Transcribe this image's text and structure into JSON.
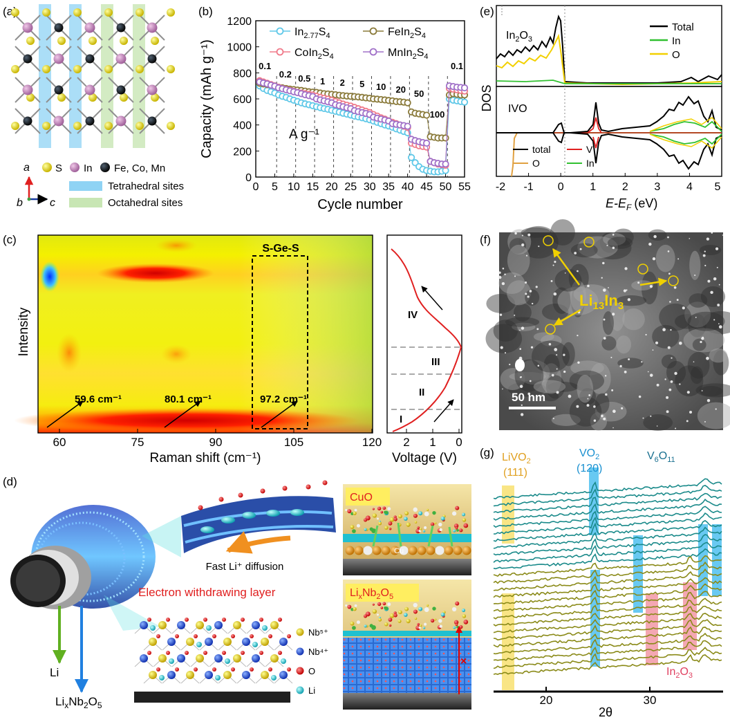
{
  "panels": {
    "a": {
      "letter": "(a)",
      "axes": {
        "a": "a",
        "b": "b",
        "c": "c"
      },
      "legend": {
        "s": "S",
        "in": "In",
        "metals": "Fe, Co, Mn",
        "tetra": "Tetrahedral sites",
        "octa": "Octahedral sites"
      }
    },
    "c": {
      "letter": "(c)",
      "box_label": "S-Ge-S",
      "ylabel": "Intensity",
      "xlabel": "Raman shift (cm⁻¹)",
      "xticks": [
        "60",
        "75",
        "90",
        "105",
        "120"
      ],
      "peaks": [
        "59.6 cm⁻¹",
        "80.1 cm⁻¹",
        "97.2 cm⁻¹"
      ],
      "voltage": {
        "xlabel": "Voltage (V)",
        "xticks": [
          "2",
          "1",
          "0"
        ],
        "stages": [
          "IV",
          "III",
          "II",
          "I"
        ]
      }
    },
    "d": {
      "letter": "(d)",
      "fast": "Fast Li⁺ diffusion",
      "ewl": "Electron withdrawing layer",
      "li": "Li",
      "lixnb": "LixNb2O5",
      "cuo": "CuO",
      "lixnb_box": "LixNb2O5",
      "cu": "Cu",
      "legend": [
        "Nb⁵⁺",
        "Nb⁴⁺",
        "O",
        "Li"
      ],
      "cross": "×"
    },
    "e": {
      "letter": "(e)",
      "ylabel": "DOS",
      "xlabel": "E-E",
      "xlabel_sub": "F",
      "xlabel_unit": "(eV)",
      "top_label": "In2O3",
      "bottom_label": "IVO",
      "xticks": [
        "-2",
        "-1",
        "0",
        "1",
        "2",
        "3",
        "4",
        "5"
      ],
      "top_legend": [
        "Total",
        "In",
        "O"
      ],
      "bottom_legend": [
        "total",
        "V",
        "O",
        "In"
      ]
    },
    "f": {
      "letter": "(f)",
      "label": "Li13In3",
      "scale": "50 nm"
    },
    "g": {
      "letter": "(g)",
      "livo2": "LiVO2",
      "livo2_hkl": "(111)",
      "vo2": "VO2",
      "vo2_hkl": "(120)",
      "v6o11": "V6O11",
      "in2o3": "In2O3",
      "xticks": [
        "20",
        "30"
      ],
      "xlabel": "2θ"
    }
  },
  "chart_data": [
    {
      "panel": "b",
      "type": "scatter",
      "letter": "(b)",
      "xlabel": "Cycle number",
      "ylabel": "Capacity (mAh g⁻¹)",
      "xlim": [
        0,
        55
      ],
      "ylim": [
        0,
        1200
      ],
      "xticks": [
        "0",
        "5",
        "10",
        "15",
        "20",
        "25",
        "30",
        "35",
        "40",
        "45",
        "50",
        "55"
      ],
      "yticks": [
        "0",
        "200",
        "400",
        "600",
        "800",
        "1000",
        "1200"
      ],
      "unit_label": "A g⁻¹",
      "rate_labels": [
        "0.1",
        "0.2",
        "0.5",
        "1",
        "2",
        "5",
        "10",
        "20",
        "50",
        "100",
        "0.1"
      ],
      "legend": [
        "In2.77S4",
        "FeIn2S4",
        "CoIn2S4",
        "MnIn2S4"
      ],
      "colors": {
        "In2.77S4": "#5fc8e8",
        "FeIn2S4": "#8a7a3a",
        "CoIn2S4": "#f07a8a",
        "MnIn2S4": "#a070c8"
      },
      "series": [
        {
          "name": "In2.77S4",
          "values": [
            700,
            680,
            665,
            655,
            645,
            630,
            620,
            612,
            600,
            590,
            580,
            570,
            562,
            555,
            548,
            540,
            533,
            526,
            520,
            512,
            505,
            498,
            490,
            483,
            476,
            468,
            462,
            455,
            448,
            440,
            430,
            420,
            410,
            400,
            392,
            382,
            370,
            360,
            350,
            340,
            150,
            110,
            80,
            60,
            50,
            45,
            40,
            40,
            45,
            50,
            600,
            590,
            585,
            580,
            575
          ]
        },
        {
          "name": "FeIn2S4",
          "values": [
            720,
            715,
            710,
            705,
            700,
            690,
            685,
            680,
            675,
            672,
            668,
            665,
            660,
            655,
            652,
            650,
            645,
            640,
            638,
            635,
            632,
            628,
            625,
            622,
            620,
            618,
            615,
            612,
            608,
            605,
            600,
            598,
            595,
            592,
            588,
            585,
            580,
            578,
            575,
            570,
            500,
            490,
            485,
            480,
            475,
            310,
            305,
            300,
            300,
            300,
            630,
            640,
            635,
            630,
            630
          ]
        },
        {
          "name": "CoIn2S4",
          "values": [
            740,
            730,
            720,
            710,
            700,
            690,
            680,
            672,
            665,
            658,
            650,
            645,
            640,
            635,
            630,
            620,
            612,
            605,
            598,
            590,
            580,
            570,
            560,
            552,
            545,
            535,
            525,
            515,
            505,
            495,
            480,
            468,
            455,
            445,
            432,
            420,
            410,
            400,
            390,
            380,
            260,
            250,
            240,
            235,
            230,
            120,
            110,
            100,
            95,
            90,
            680,
            675,
            670,
            665,
            660
          ]
        },
        {
          "name": "MnIn2S4",
          "values": [
            730,
            722,
            715,
            705,
            698,
            685,
            678,
            670,
            662,
            655,
            648,
            640,
            632,
            625,
            618,
            600,
            592,
            585,
            578,
            570,
            555,
            548,
            540,
            532,
            525,
            510,
            502,
            495,
            488,
            480,
            460,
            452,
            445,
            438,
            430,
            410,
            405,
            400,
            395,
            390,
            290,
            280,
            272,
            265,
            260,
            120,
            110,
            105,
            100,
            100,
            700,
            695,
            690,
            688,
            685
          ]
        }
      ]
    }
  ]
}
